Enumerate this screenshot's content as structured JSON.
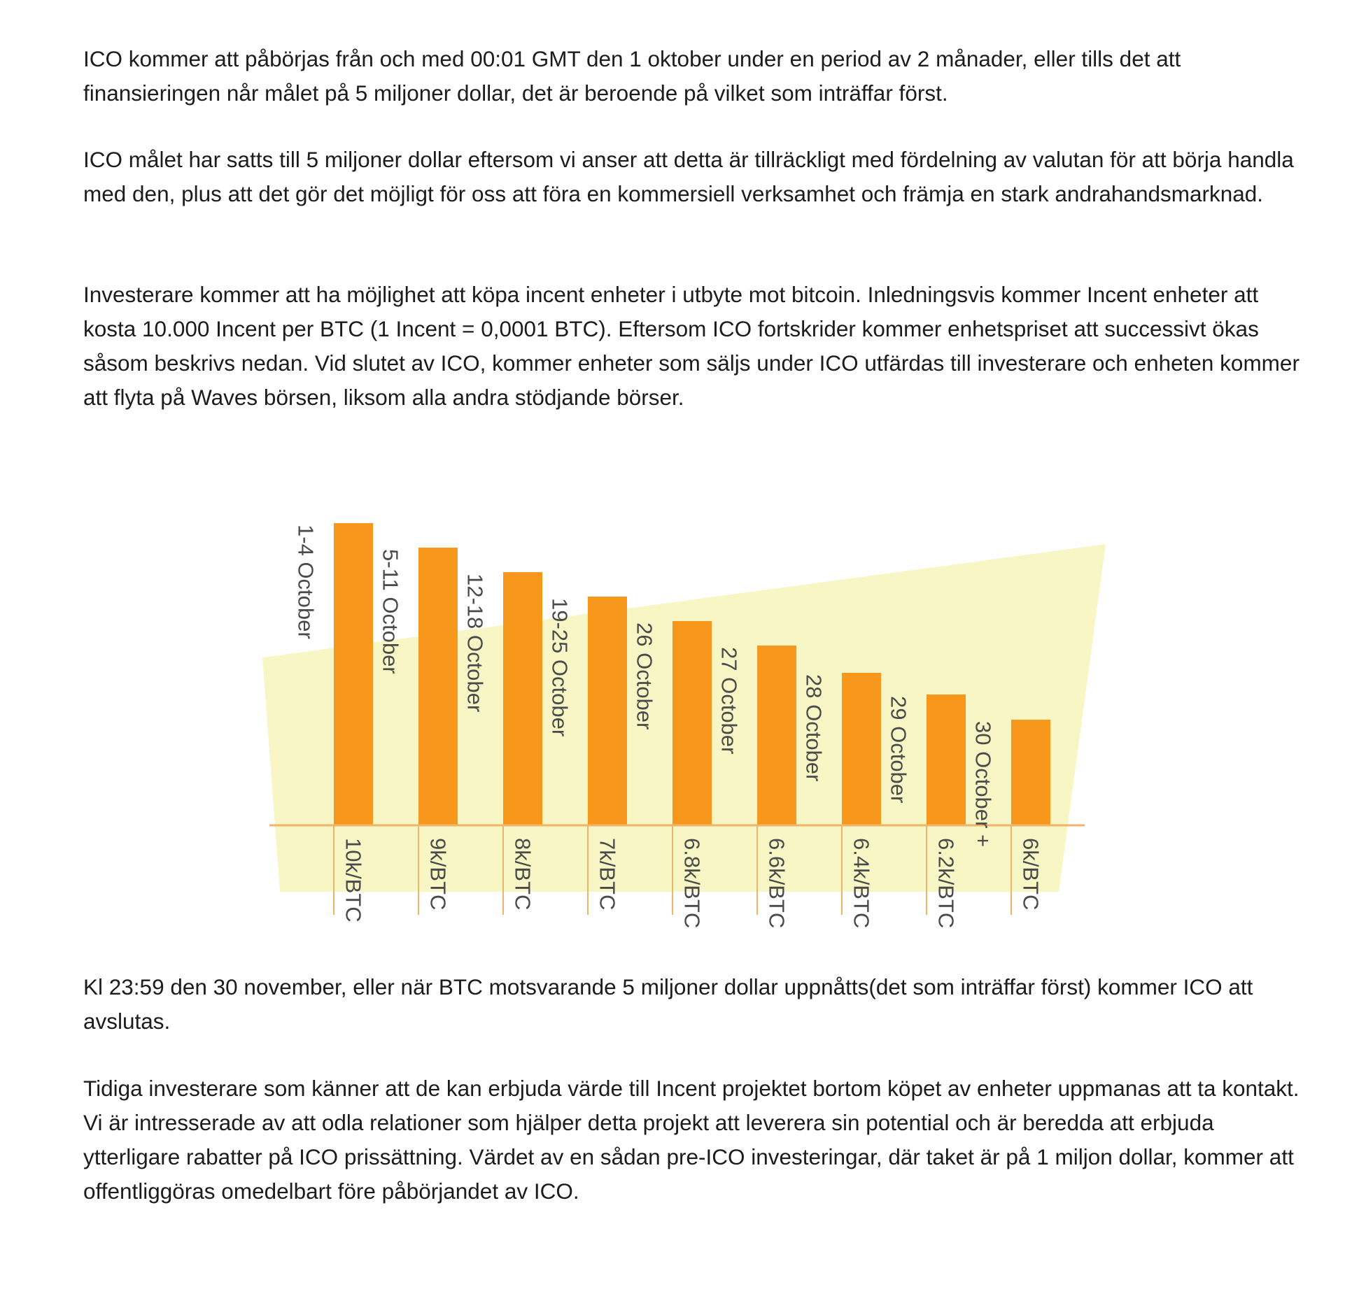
{
  "paragraphs": [
    "ICO kommer att påbörjas från och med 00:01 GMT den 1 oktober under en period av 2 månader, eller tills det att finansieringen når målet på 5 miljoner dollar, det är beroende på vilket som inträffar först.",
    "ICO målet har satts till 5 miljoner dollar eftersom vi anser att detta är tillräckligt med fördelning av valutan för att börja handla med den, plus att det gör det möjligt för oss att föra en kommersiell verksamhet och främja en stark andrahandsmarknad.",
    "Investerare kommer att ha möjlighet att köpa incent enheter i utbyte mot bitcoin. Inledningsvis kommer Incent enheter att kosta 10.000 Incent per BTC (1 Incent = 0,0001 BTC). Eftersom ICO fortskrider kommer enhetspriset att successivt ökas såsom beskrivs nedan. Vid slutet av ICO, kommer enheter som säljs under ICO utfärdas till investerare och enheten kommer att flyta på Waves börsen, liksom alla andra stödjande börser.",
    "Kl 23:59 den 30 november, eller när BTC motsvarande 5 miljoner dollar uppnåtts(det som inträffar först) kommer ICO att avslutas.",
    "Tidiga investerare som känner att de kan erbjuda värde till Incent projektet bortom köpet av enheter uppmanas att ta kontakt. Vi är intresserade av att odla relationer som hjälper detta projekt att leverera sin potential och är beredda att erbjuda ytterligare rabatter på ICO prissättning. Värdet av en sådan pre-ICO investeringar, där taket är på 1 miljon dollar, kommer att offentliggöras omedelbart före påbörjandet av ICO."
  ],
  "colors": {
    "bar": "#f7981d",
    "axis": "#f0b469",
    "background_shape": "#f8f6c4",
    "label": "#4a4a4a",
    "text": "#1c1c1c"
  },
  "chart_data": {
    "type": "bar",
    "categories": [
      "1-4 October",
      "5-11 October",
      "12-18 October",
      "19-25 October",
      "26 October",
      "27 October",
      "28 October",
      "29 October",
      "30 October +"
    ],
    "price_labels": [
      "10k/BTC",
      "9k/BTC",
      "8k/BTC",
      "7k/BTC",
      "6.8k/BTC",
      "6.6k/BTC",
      "6.4k/BTC",
      "6.2k/BTC",
      "6k/BTC"
    ],
    "values": [
      10000,
      9000,
      8000,
      7000,
      6800,
      6600,
      6400,
      6200,
      6000
    ],
    "unit": "Incent per BTC",
    "grid": false,
    "legend": "none"
  }
}
